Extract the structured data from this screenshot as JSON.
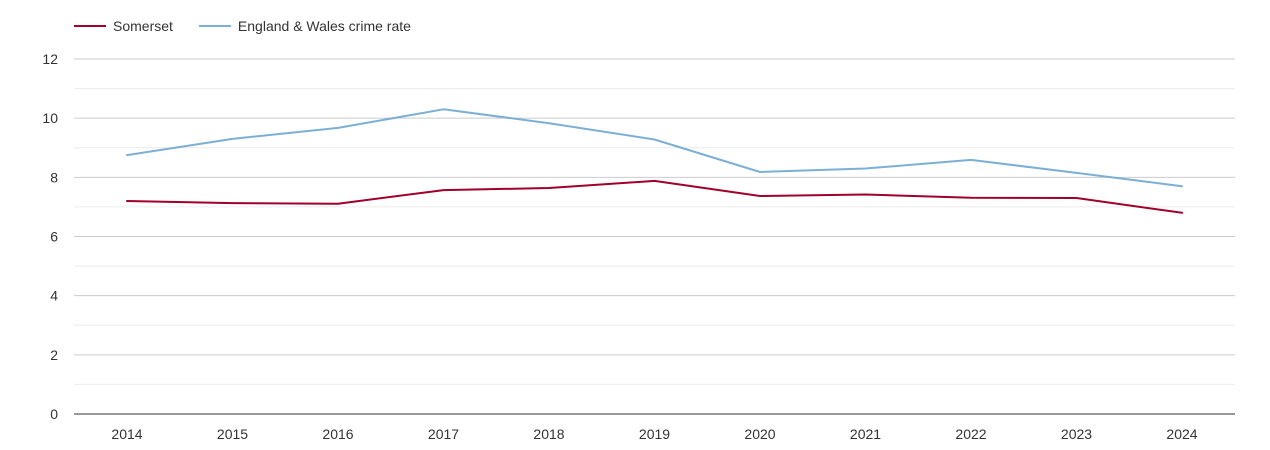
{
  "chart_data": {
    "type": "line",
    "title": "",
    "xlabel": "",
    "ylabel": "",
    "x": [
      2014,
      2015,
      2016,
      2017,
      2018,
      2019,
      2020,
      2021,
      2022,
      2023,
      2024
    ],
    "ylim": [
      0,
      12
    ],
    "yticks": [
      0,
      2,
      4,
      6,
      8,
      10,
      12
    ],
    "grid": true,
    "legend_position": "top-left",
    "series": [
      {
        "name": "Somerset",
        "color": "#a0002a",
        "values": [
          7.2,
          7.13,
          7.11,
          7.57,
          7.64,
          7.88,
          7.37,
          7.42,
          7.31,
          7.3,
          6.8
        ]
      },
      {
        "name": "England & Wales crime rate",
        "color": "#7bafd4",
        "values": [
          8.75,
          9.3,
          9.67,
          10.3,
          9.83,
          9.28,
          8.18,
          8.3,
          8.59,
          8.15,
          7.7
        ]
      }
    ]
  }
}
